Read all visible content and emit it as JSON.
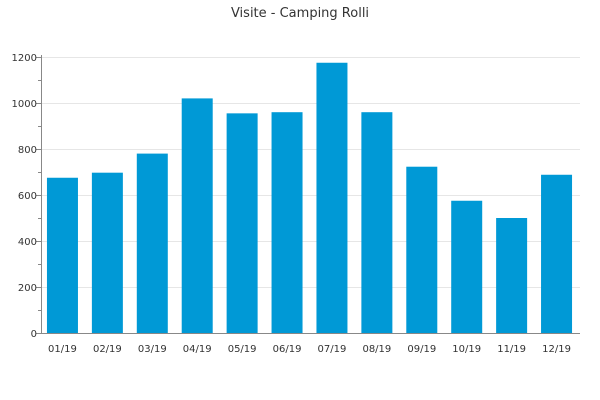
{
  "chart_data": {
    "type": "bar",
    "title": "Visite - Camping Rolli",
    "xlabel": "",
    "ylabel": "",
    "categories": [
      "01/19",
      "02/19",
      "03/19",
      "04/19",
      "05/19",
      "06/19",
      "07/19",
      "08/19",
      "09/19",
      "10/19",
      "11/19",
      "12/19"
    ],
    "values": [
      675,
      697,
      780,
      1020,
      955,
      960,
      1175,
      960,
      723,
      575,
      500,
      688
    ],
    "ylim": [
      0,
      1200
    ],
    "yticks": [
      0,
      200,
      400,
      600,
      800,
      1000,
      1200
    ],
    "grid": true,
    "legend": "none",
    "colors": {
      "bar": "#0099d6",
      "grid": "#e6e6e6",
      "axis": "#888888",
      "text": "#333333"
    }
  }
}
